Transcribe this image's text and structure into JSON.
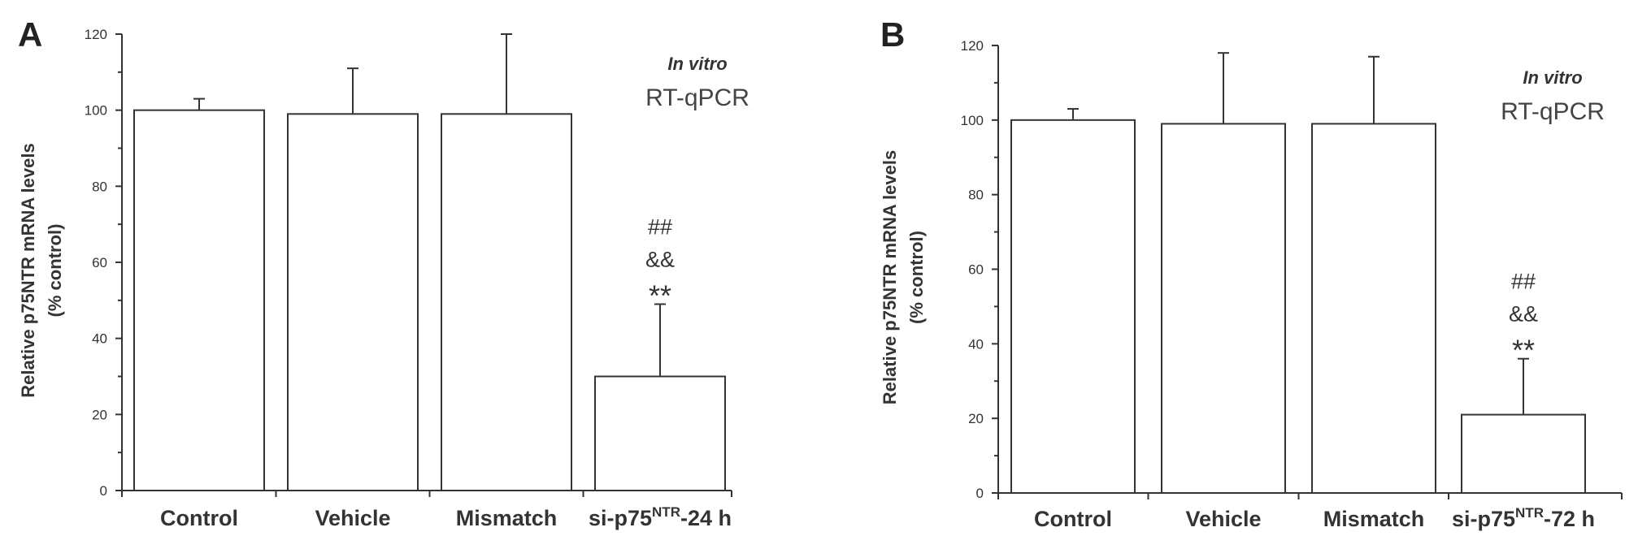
{
  "chart_data": [
    {
      "type": "bar",
      "panel": "A",
      "annotation": {
        "condition": "In vitro",
        "method": "RT-qPCR"
      },
      "ylabel_line1": "Relative  p75NTR mRNA levels",
      "ylabel_line2": "(% control)",
      "xlabel": "",
      "ylim": [
        0,
        120
      ],
      "yticks": [
        0,
        20,
        40,
        60,
        80,
        100,
        120
      ],
      "categories": [
        {
          "label": "Control",
          "sup": "",
          "suffix": ""
        },
        {
          "label": "Vehicle",
          "sup": "",
          "suffix": ""
        },
        {
          "label": "Mismatch",
          "sup": "",
          "suffix": ""
        },
        {
          "label": "si-p75",
          "sup": "NTR",
          "suffix": "-24 h"
        }
      ],
      "values": [
        100,
        99,
        99,
        30
      ],
      "errors": [
        3,
        12,
        21,
        19
      ],
      "significance": [
        {
          "category_index": 3,
          "marks": [
            "##",
            "&&",
            "**"
          ]
        }
      ]
    },
    {
      "type": "bar",
      "panel": "B",
      "annotation": {
        "condition": "In vitro",
        "method": "RT-qPCR"
      },
      "ylabel_line1": "Relative  p75NTR mRNA levels",
      "ylabel_line2": "(% control)",
      "xlabel": "",
      "ylim": [
        0,
        120
      ],
      "yticks": [
        0,
        20,
        40,
        60,
        80,
        100,
        120
      ],
      "categories": [
        {
          "label": "Control",
          "sup": "",
          "suffix": ""
        },
        {
          "label": "Vehicle",
          "sup": "",
          "suffix": ""
        },
        {
          "label": "Mismatch",
          "sup": "",
          "suffix": ""
        },
        {
          "label": "si-p75",
          "sup": "NTR",
          "suffix": "-72 h"
        }
      ],
      "values": [
        100,
        99,
        99,
        21
      ],
      "errors": [
        3,
        19,
        18,
        15
      ],
      "significance": [
        {
          "category_index": 3,
          "marks": [
            "##",
            "&&",
            "**"
          ]
        }
      ]
    }
  ]
}
